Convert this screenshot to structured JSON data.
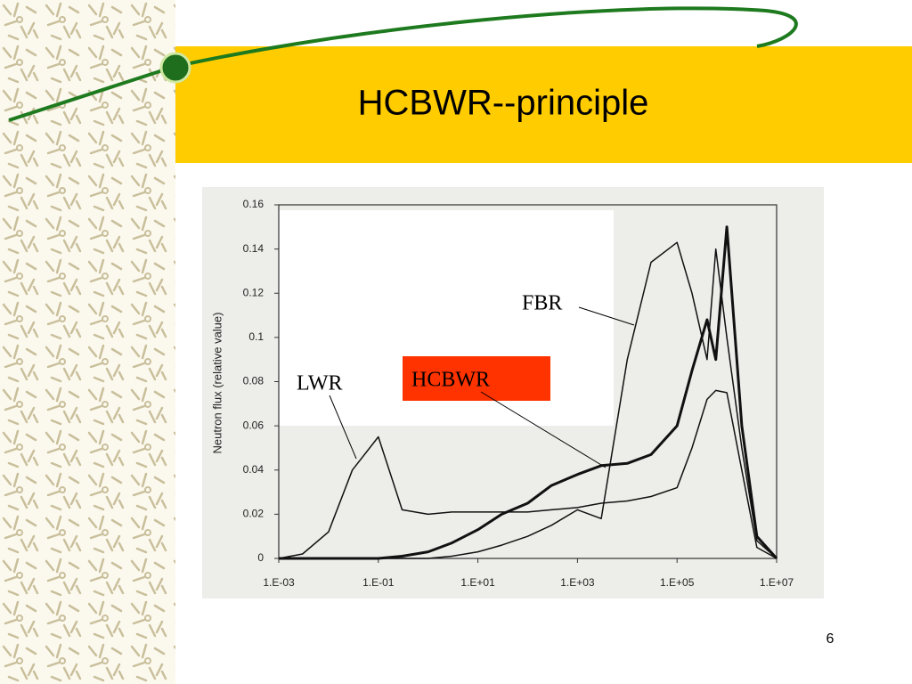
{
  "slide": {
    "title": "HCBWR--principle",
    "page_number": "6"
  },
  "chart_data": {
    "type": "line",
    "y_label": "Neutron flux (relative value)",
    "x_scale": "log",
    "x": [
      0.001,
      0.003,
      0.01,
      0.03,
      0.1,
      0.3,
      1,
      3,
      10,
      30,
      100,
      300,
      1000,
      3000,
      10000,
      30000,
      100000,
      200000,
      400000,
      600000,
      1000000,
      2000000,
      4000000,
      10000000
    ],
    "xlim": [
      0.001,
      10000000
    ],
    "xticks": [
      {
        "value": 0.001,
        "label": "1.E-03"
      },
      {
        "value": 0.1,
        "label": "1.E-01"
      },
      {
        "value": 10,
        "label": "1.E+01"
      },
      {
        "value": 1000,
        "label": "1.E+03"
      },
      {
        "value": 100000,
        "label": "1.E+05"
      },
      {
        "value": 10000000,
        "label": "1.E+07"
      }
    ],
    "ylim": [
      0,
      0.16
    ],
    "yticks": [
      0,
      0.02,
      0.04,
      0.06,
      0.08,
      0.1,
      0.12,
      0.14,
      0.16
    ],
    "series": [
      {
        "name": "LWR",
        "color": "#111111",
        "values": [
          0,
          0.002,
          0.012,
          0.04,
          0.055,
          0.022,
          0.02,
          0.021,
          0.021,
          0.021,
          0.021,
          0.022,
          0.023,
          0.025,
          0.026,
          0.028,
          0.032,
          0.05,
          0.072,
          0.076,
          0.075,
          0.04,
          0.005,
          0
        ]
      },
      {
        "name": "HCBWR",
        "color": "#111111",
        "values": [
          0,
          0,
          0,
          0,
          0,
          0.001,
          0.003,
          0.007,
          0.013,
          0.02,
          0.025,
          0.033,
          0.038,
          0.042,
          0.043,
          0.047,
          0.06,
          0.085,
          0.108,
          0.09,
          0.15,
          0.06,
          0.01,
          0
        ]
      },
      {
        "name": "FBR",
        "color": "#111111",
        "values": [
          0,
          0,
          0,
          0,
          0,
          0,
          0,
          0.001,
          0.003,
          0.006,
          0.01,
          0.015,
          0.022,
          0.018,
          0.09,
          0.134,
          0.143,
          0.12,
          0.09,
          0.14,
          0.1,
          0.05,
          0.008,
          0
        ]
      }
    ],
    "annotations": [
      "LWR",
      "HCBWR",
      "FBR"
    ]
  }
}
